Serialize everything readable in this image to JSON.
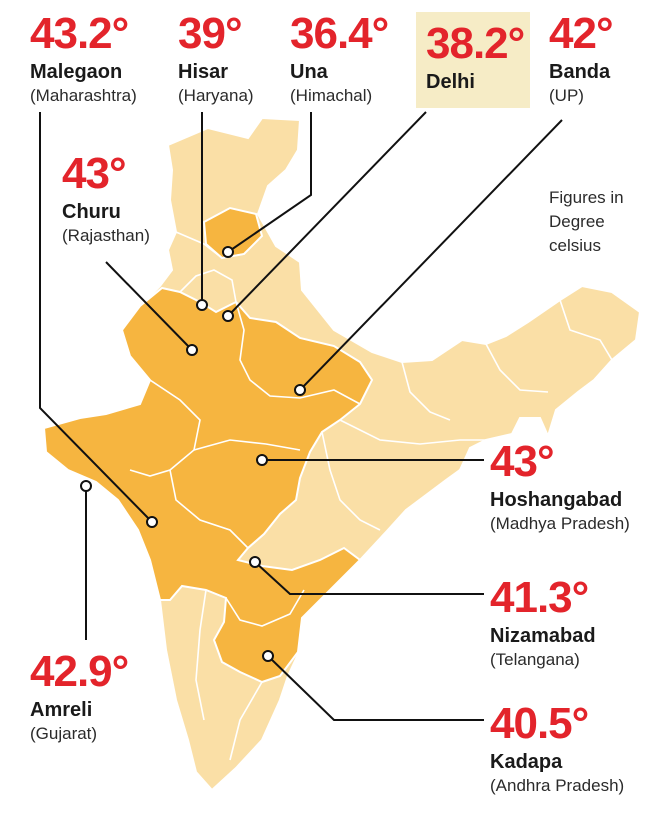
{
  "note": "Figures in Degree celsius",
  "colors": {
    "hot_region": "#f6b540",
    "other_region": "#fadfa6",
    "temperature_text": "#e3242b",
    "delhi_highlight": "#f6ecc6"
  },
  "callouts": [
    {
      "id": "malegaon",
      "temp": "43.2°",
      "city": "Malegaon",
      "state": "(Maharashtra)"
    },
    {
      "id": "hisar",
      "temp": "39°",
      "city": "Hisar",
      "state": "(Haryana)"
    },
    {
      "id": "una",
      "temp": "36.4°",
      "city": "Una",
      "state": "(Himachal)"
    },
    {
      "id": "delhi",
      "temp": "38.2°",
      "city": "Delhi",
      "state": ""
    },
    {
      "id": "banda",
      "temp": "42°",
      "city": "Banda",
      "state": "(UP)"
    },
    {
      "id": "churu",
      "temp": "43°",
      "city": "Churu",
      "state": "(Rajasthan)"
    },
    {
      "id": "hoshangabad",
      "temp": "43°",
      "city": "Hoshangabad",
      "state": "(Madhya Pradesh)"
    },
    {
      "id": "nizamabad",
      "temp": "41.3°",
      "city": "Nizamabad",
      "state": "(Telangana)"
    },
    {
      "id": "amreli",
      "temp": "42.9°",
      "city": "Amreli",
      "state": "(Gujarat)"
    },
    {
      "id": "kadapa",
      "temp": "40.5°",
      "city": "Kadapa",
      "state": "(Andhra Pradesh)"
    }
  ]
}
